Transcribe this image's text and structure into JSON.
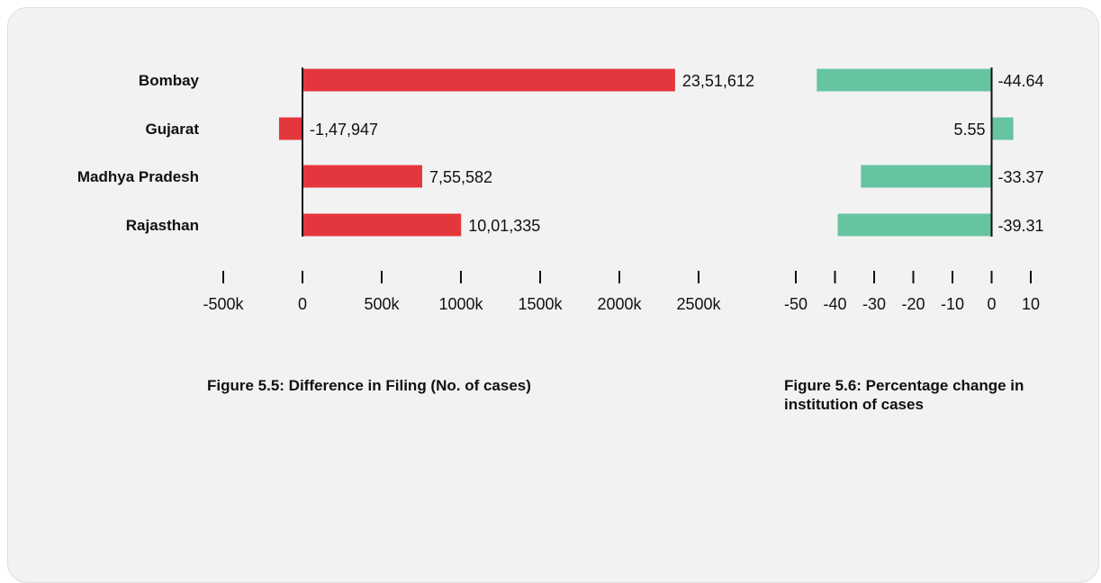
{
  "chart_data": [
    {
      "type": "bar",
      "orientation": "horizontal",
      "categories": [
        "Bombay",
        "Gujarat",
        "Madhya Pradesh",
        "Rajasthan"
      ],
      "values": [
        2351612,
        -147947,
        755582,
        1001335
      ],
      "value_labels": [
        "23,51,612",
        "-1,47,947",
        "7,55,582",
        "10,01,335"
      ],
      "xlim": [
        -500000,
        2500000
      ],
      "xticks": [
        -500000,
        0,
        500000,
        1000000,
        1500000,
        2000000,
        2500000
      ],
      "xtick_labels": [
        "-500k",
        "0",
        "500k",
        "1000k",
        "1500k",
        "2000k",
        "2500k"
      ],
      "color": "#e4373d",
      "grid": false,
      "caption": "Figure 5.5: Difference in Filing (No. of cases)"
    },
    {
      "type": "bar",
      "orientation": "horizontal",
      "categories": [
        "Bombay",
        "Gujarat",
        "Madhya Pradesh",
        "Rajasthan"
      ],
      "values": [
        -44.64,
        5.55,
        -33.37,
        -39.31
      ],
      "value_labels": [
        "-44.64",
        "5.55",
        "-33.37",
        "-39.31"
      ],
      "xlim": [
        -50,
        10
      ],
      "xticks": [
        -50,
        -40,
        -30,
        -20,
        -10,
        0,
        10
      ],
      "xtick_labels": [
        "-50",
        "-40",
        "-30",
        "-20",
        "-10",
        "0",
        "10"
      ],
      "color": "#66c4a0",
      "grid": false,
      "caption": "Figure 5.6: Percentage change in institution of cases"
    }
  ]
}
